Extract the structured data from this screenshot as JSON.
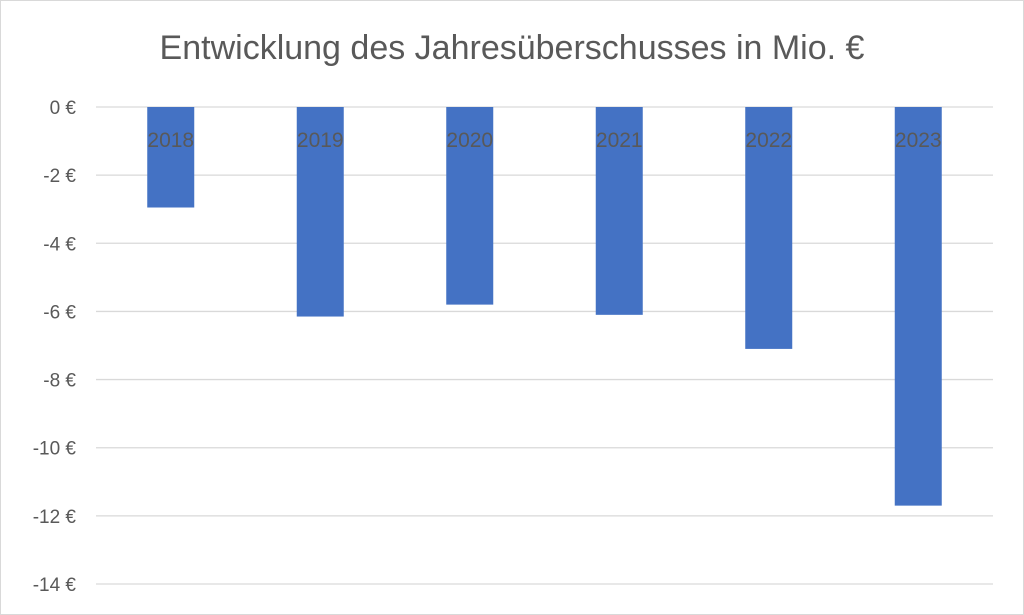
{
  "chart_data": {
    "type": "bar",
    "title": "Entwicklung des Jahresüberschusses in Mio. €",
    "categories": [
      "2018",
      "2019",
      "2020",
      "2021",
      "2022",
      "2023"
    ],
    "values": [
      -2.95,
      -6.15,
      -5.8,
      -6.1,
      -7.1,
      -11.7
    ],
    "xlabel": "",
    "ylabel": "",
    "ylim": [
      -14,
      0
    ],
    "yticks": [
      0,
      -2,
      -4,
      -6,
      -8,
      -10,
      -12,
      -14
    ],
    "ytick_labels": [
      "0 €",
      "-2 €",
      "-4 €",
      "-6 €",
      "-8 €",
      "-10 €",
      "-12 €",
      "-14 €"
    ],
    "grid": true,
    "legend": "none",
    "bar_color": "#4472C4",
    "grid_color": "#d9d9d9",
    "text_color": "#595959"
  }
}
